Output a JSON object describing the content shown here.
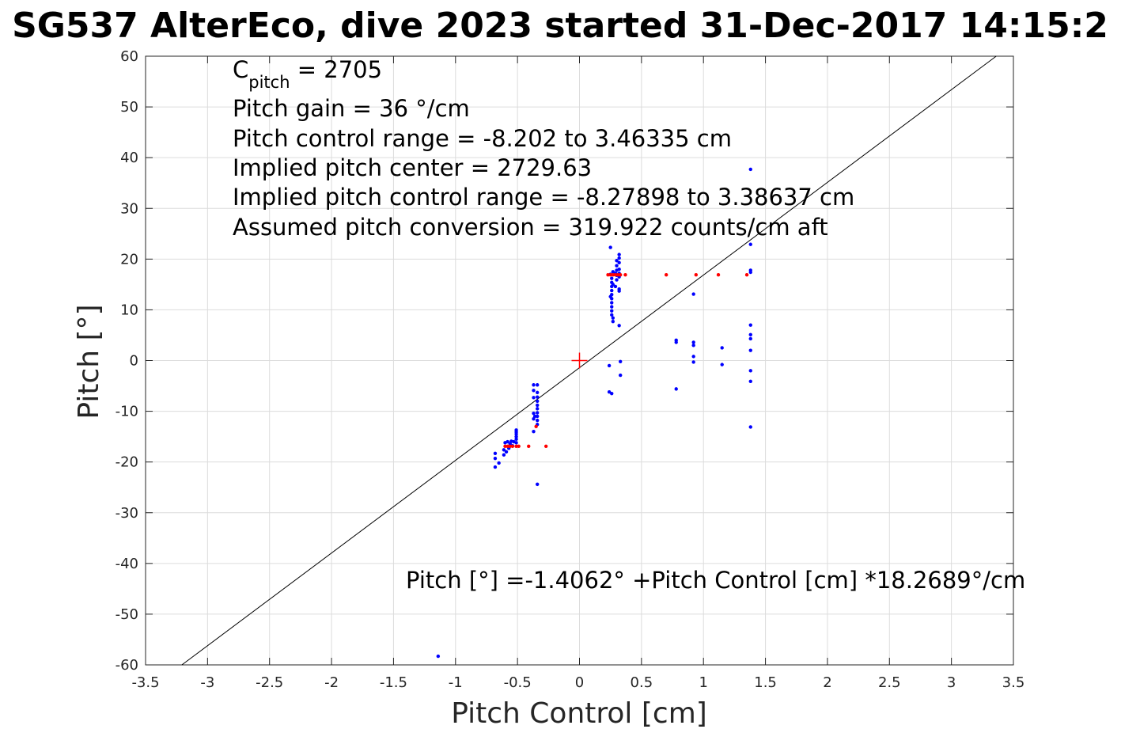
{
  "chart_data": {
    "type": "scatter",
    "title": "SG537 AlterEco, dive 2023 started 31-Dec-2017 14:15:2",
    "xlabel": "Pitch Control [cm]",
    "ylabel": "Pitch [°]",
    "xlim": [
      -3.5,
      3.5
    ],
    "ylim": [
      -60,
      60
    ],
    "xticks": [
      -3.5,
      -3,
      -2.5,
      -2,
      -1.5,
      -1,
      -0.5,
      0,
      0.5,
      1,
      1.5,
      2,
      2.5,
      3,
      3.5
    ],
    "xtick_labels": [
      "-3.5",
      "-3",
      "-2.5",
      "-2",
      "-1.5",
      "-1",
      "-0.5",
      "0",
      "0.5",
      "1",
      "1.5",
      "2",
      "2.5",
      "3",
      "3.5"
    ],
    "yticks": [
      -60,
      -50,
      -40,
      -30,
      -20,
      -10,
      0,
      10,
      20,
      30,
      40,
      50,
      60
    ],
    "ytick_labels": [
      "-60",
      "-50",
      "-40",
      "-30",
      "-20",
      "-10",
      "0",
      "10",
      "20",
      "30",
      "40",
      "50",
      "60"
    ],
    "grid": true,
    "annotations": {
      "c_pitch_main": "C",
      "c_pitch_sub": "pitch",
      "c_pitch_value": " = 2705",
      "lines": [
        "Pitch gain = 36 °/cm",
        "Pitch control range = -8.202 to 3.46335 cm",
        "Implied pitch center = 2729.63",
        "Implied pitch control range = -8.27898 to 3.38637 cm",
        "Assumed pitch conversion = 319.922 counts/cm aft"
      ],
      "fit_equation": "Pitch [°] =-1.4062° +Pitch Control [cm] *18.2689°/cm"
    },
    "fit_line": {
      "intercept": -1.4062,
      "slope": 18.2689,
      "color": "#000000"
    },
    "center_marker": {
      "x": 0,
      "y": 0,
      "color": "#ff0000"
    },
    "series": [
      {
        "color": "#0000ff",
        "points": [
          [
            -1.14,
            -58.3
          ],
          [
            -0.68,
            -21.0
          ],
          [
            -0.68,
            -19.3
          ],
          [
            -0.68,
            -18.3
          ],
          [
            -0.65,
            -20.2
          ],
          [
            -0.61,
            -18.6
          ],
          [
            -0.61,
            -17.6
          ],
          [
            -0.6,
            -16.2
          ],
          [
            -0.59,
            -18.0
          ],
          [
            -0.58,
            -16.0
          ],
          [
            -0.57,
            -17.3
          ],
          [
            -0.56,
            -16.4
          ],
          [
            -0.55,
            -15.9
          ],
          [
            -0.54,
            -16.8
          ],
          [
            -0.53,
            -16.0
          ],
          [
            -0.51,
            -15.5
          ],
          [
            -0.51,
            -15.0
          ],
          [
            -0.51,
            -14.5
          ],
          [
            -0.51,
            -14.1
          ],
          [
            -0.51,
            -13.7
          ],
          [
            -0.51,
            -16.2
          ],
          [
            -0.37,
            -14.0
          ],
          [
            -0.37,
            -11.5
          ],
          [
            -0.37,
            -10.4
          ],
          [
            -0.37,
            -7.3
          ],
          [
            -0.37,
            -5.9
          ],
          [
            -0.37,
            -4.8
          ],
          [
            -0.36,
            -11.0
          ],
          [
            -0.34,
            -4.8
          ],
          [
            -0.34,
            -6.3
          ],
          [
            -0.34,
            -7.2
          ],
          [
            -0.34,
            -8.0
          ],
          [
            -0.34,
            -8.8
          ],
          [
            -0.34,
            -9.5
          ],
          [
            -0.34,
            -10.3
          ],
          [
            -0.34,
            -11.0
          ],
          [
            -0.34,
            -11.8
          ],
          [
            -0.34,
            -12.6
          ],
          [
            -0.34,
            -24.4
          ],
          [
            0.24,
            -1.0
          ],
          [
            0.24,
            -6.2
          ],
          [
            0.26,
            -6.5
          ],
          [
            0.25,
            22.3
          ],
          [
            0.25,
            17.0
          ],
          [
            0.25,
            12.6
          ],
          [
            0.26,
            9.0
          ],
          [
            0.26,
            9.8
          ],
          [
            0.26,
            10.6
          ],
          [
            0.26,
            11.4
          ],
          [
            0.26,
            12.2
          ],
          [
            0.26,
            13.0
          ],
          [
            0.26,
            13.8
          ],
          [
            0.26,
            14.6
          ],
          [
            0.26,
            15.4
          ],
          [
            0.26,
            16.2
          ],
          [
            0.27,
            7.7
          ],
          [
            0.27,
            8.4
          ],
          [
            0.27,
            17.5
          ],
          [
            0.27,
            15.0
          ],
          [
            0.29,
            14.6
          ],
          [
            0.29,
            17.2
          ],
          [
            0.3,
            15.9
          ],
          [
            0.3,
            16.8
          ],
          [
            0.3,
            17.8
          ],
          [
            0.3,
            18.7
          ],
          [
            0.3,
            19.7
          ],
          [
            0.32,
            20.2
          ],
          [
            0.32,
            20.9
          ],
          [
            0.32,
            19.3
          ],
          [
            0.32,
            18.0
          ],
          [
            0.32,
            17.2
          ],
          [
            0.32,
            16.5
          ],
          [
            0.32,
            14.1
          ],
          [
            0.32,
            13.7
          ],
          [
            0.32,
            6.9
          ],
          [
            0.33,
            -0.2
          ],
          [
            0.33,
            -2.9
          ],
          [
            0.78,
            4.0
          ],
          [
            0.78,
            3.6
          ],
          [
            0.78,
            -5.6
          ],
          [
            0.92,
            13.1
          ],
          [
            0.92,
            3.6
          ],
          [
            0.92,
            3.0
          ],
          [
            0.92,
            0.8
          ],
          [
            0.92,
            -0.3
          ],
          [
            1.15,
            2.5
          ],
          [
            1.15,
            -0.8
          ],
          [
            1.38,
            37.7
          ],
          [
            1.38,
            22.9
          ],
          [
            1.38,
            17.8
          ],
          [
            1.38,
            17.4
          ],
          [
            1.38,
            7.0
          ],
          [
            1.38,
            5.1
          ],
          [
            1.38,
            4.3
          ],
          [
            1.38,
            2.0
          ],
          [
            1.38,
            -2.0
          ],
          [
            1.38,
            -4.1
          ],
          [
            1.38,
            -13.1
          ]
        ]
      },
      {
        "color": "#ff0000",
        "points": [
          [
            -0.6,
            -16.9
          ],
          [
            -0.58,
            -16.9
          ],
          [
            -0.56,
            -16.9
          ],
          [
            -0.54,
            -16.9
          ],
          [
            -0.51,
            -16.9
          ],
          [
            -0.49,
            -16.9
          ],
          [
            -0.41,
            -16.9
          ],
          [
            -0.35,
            -13.0
          ],
          [
            -0.27,
            -16.9
          ],
          [
            0.23,
            16.9
          ],
          [
            0.25,
            16.9
          ],
          [
            0.27,
            16.9
          ],
          [
            0.29,
            16.9
          ],
          [
            0.31,
            16.9
          ],
          [
            0.33,
            16.9
          ],
          [
            0.37,
            16.9
          ],
          [
            0.7,
            16.9
          ],
          [
            0.94,
            16.9
          ],
          [
            1.12,
            16.9
          ],
          [
            1.35,
            16.9
          ]
        ]
      }
    ]
  }
}
